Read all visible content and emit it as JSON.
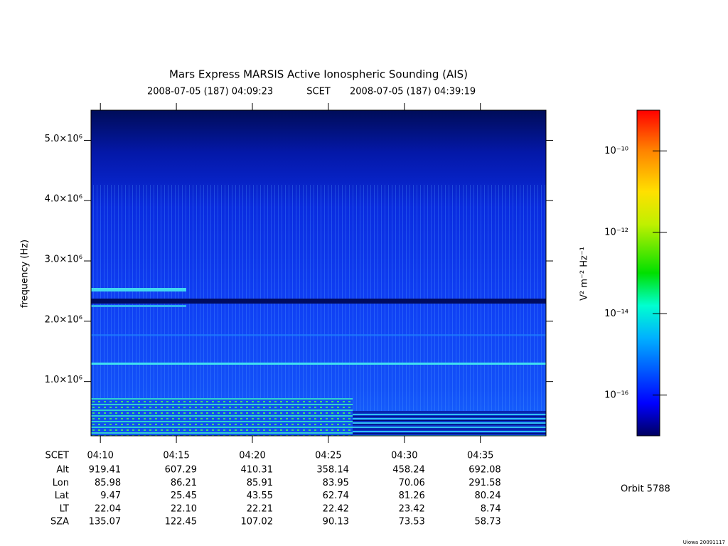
{
  "header": {
    "title": "Mars Express MARSIS Active Ionospheric Sounding (AIS)",
    "start": "2008-07-05 (187) 04:09:23",
    "frame": "SCET",
    "end": "2008-07-05 (187) 04:39:19"
  },
  "chart_data": {
    "type": "spectrogram",
    "y_label": "frequency (Hz)",
    "xlim": [
      "2008-07-05T04:09:23",
      "2008-07-05T04:39:19"
    ],
    "xticks": [
      {
        "value": "2008-07-05T04:10",
        "label": "04:10"
      },
      {
        "value": "2008-07-05T04:15",
        "label": "04:15"
      },
      {
        "value": "2008-07-05T04:20",
        "label": "04:20"
      },
      {
        "value": "2008-07-05T04:25",
        "label": "04:25"
      },
      {
        "value": "2008-07-05T04:30",
        "label": "04:30"
      },
      {
        "value": "2008-07-05T04:35",
        "label": "04:35"
      }
    ],
    "ylim": [
      100000,
      5500000
    ],
    "yticks": [
      {
        "value": 1000000,
        "label": "1.0×10⁶"
      },
      {
        "value": 2000000,
        "label": "2.0×10⁶"
      },
      {
        "value": 3000000,
        "label": "3.0×10⁶"
      },
      {
        "value": 4000000,
        "label": "4.0×10⁶"
      },
      {
        "value": 5000000,
        "label": "5.0×10⁶"
      }
    ],
    "colorbar": {
      "label": "V² m⁻² Hz⁻¹",
      "log": true,
      "lim": [
        1e-17,
        1e-09
      ],
      "ticks": [
        {
          "value": 1e-10,
          "label": "10⁻¹⁰"
        },
        {
          "value": 1e-12,
          "label": "10⁻¹²"
        },
        {
          "value": 1e-14,
          "label": "10⁻¹⁴"
        },
        {
          "value": 1e-16,
          "label": "10⁻¹⁶"
        }
      ]
    }
  },
  "ephemeris": {
    "label": "SCET",
    "rows": [
      {
        "name": "Alt",
        "values": [
          "919.41",
          "607.29",
          "410.31",
          "358.14",
          "458.24",
          "692.08"
        ]
      },
      {
        "name": "Lon",
        "values": [
          "85.98",
          "86.21",
          "85.91",
          "83.95",
          "70.06",
          "291.58"
        ]
      },
      {
        "name": "Lat",
        "values": [
          "9.47",
          "25.45",
          "43.55",
          "62.74",
          "81.26",
          "80.24"
        ]
      },
      {
        "name": "LT",
        "values": [
          "22.04",
          "22.10",
          "22.21",
          "22.42",
          "23.42",
          "8.74"
        ]
      },
      {
        "name": "SZA",
        "values": [
          "135.07",
          "122.45",
          "107.02",
          "90.13",
          "73.53",
          "58.73"
        ]
      }
    ]
  },
  "orbit": "Orbit 5788",
  "credit": "Uiowa 20091117"
}
